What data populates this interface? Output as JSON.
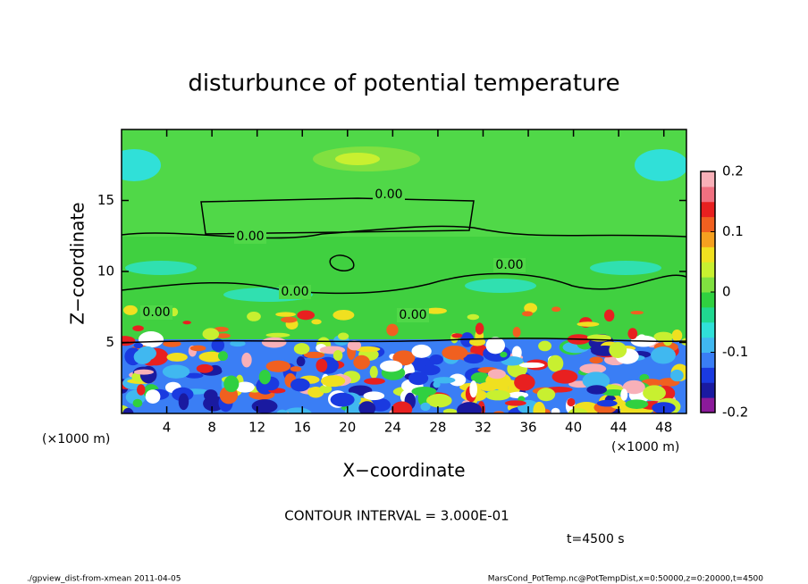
{
  "chart_data": {
    "type": "contour",
    "title": "disturbunce of potential temperature",
    "xlabel": "X−coordinate",
    "ylabel": "Z−coordinate",
    "x_unit_label": "(×1000 m)",
    "xlim": [
      0,
      50
    ],
    "xticks": [
      4,
      8,
      12,
      16,
      20,
      24,
      28,
      32,
      36,
      40,
      44,
      48
    ],
    "ylim": [
      0,
      20
    ],
    "yticks": [
      5,
      10,
      15
    ],
    "contour_labels": [
      "0.00",
      "0.00",
      "0.00",
      "0.00",
      "0.00",
      "0.00"
    ],
    "contour_interval": "CONTOUR INTERVAL = 3.000E-01",
    "time_label": "t=4500 s",
    "colorbar": {
      "clim": [
        -0.2,
        0.2
      ],
      "ticks": [
        -0.2,
        -0.1,
        0,
        0.1,
        0.2
      ],
      "colors": [
        "#8b1a9a",
        "#1a1aa0",
        "#1a3ae0",
        "#3a7ef5",
        "#40b8f0",
        "#30e0d8",
        "#20d890",
        "#30d040",
        "#80e040",
        "#c8f030",
        "#f0e020",
        "#f5a020",
        "#f06020",
        "#e82020",
        "#f07080",
        "#f8b0b8"
      ]
    },
    "footer_left": "./gpview_dist-from-xmean  2011-04-05",
    "footer_right": "MarsCond_PotTemp.nc@PotTempDist,x=0:50000,z=0:20000,t=4500"
  }
}
